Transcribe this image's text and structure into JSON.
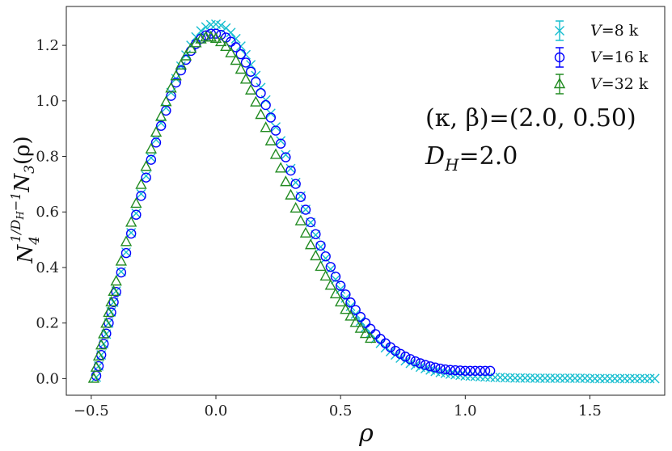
{
  "chart_data": {
    "type": "scatter",
    "title": "",
    "xlabel": "ρ",
    "ylabel": "N4^(1/DH−1) N3(ρ)",
    "ylabel_parts": {
      "base1": "N",
      "sub1": "4",
      "sup1": "1/D",
      "supsub": "H",
      "supend": "−1",
      "base2": "N",
      "sub2": "3",
      "arg": "(ρ)"
    },
    "xlim": [
      -0.6,
      1.8
    ],
    "ylim": [
      -0.06,
      1.34
    ],
    "xticks": [
      -0.5,
      0.0,
      0.5,
      1.0,
      1.5
    ],
    "xtick_labels": [
      "−0.5",
      "0.0",
      "0.5",
      "1.0",
      "1.5"
    ],
    "yticks": [
      0.0,
      0.2,
      0.4,
      0.6,
      0.8,
      1.0,
      1.2
    ],
    "ytick_labels": [
      "0.0",
      "0.2",
      "0.4",
      "0.6",
      "0.8",
      "1.0",
      "1.2"
    ],
    "grid": false,
    "legend_position": "top-right",
    "annotations": [
      {
        "text": "(κ, β)=(2.0, 0.50)"
      },
      {
        "text": "D",
        "sub": "H",
        "rest": "=2.0"
      }
    ],
    "series": [
      {
        "name": "V=8 k",
        "legend_var": "V",
        "legend_rest": "=8 k",
        "marker": "x",
        "color": "#17becf",
        "x": [
          -0.48,
          -0.47,
          -0.46,
          -0.45,
          -0.44,
          -0.43,
          -0.42,
          -0.41,
          -0.4,
          -0.38,
          -0.36,
          -0.34,
          -0.32,
          -0.3,
          -0.28,
          -0.26,
          -0.24,
          -0.22,
          -0.2,
          -0.18,
          -0.16,
          -0.14,
          -0.12,
          -0.1,
          -0.08,
          -0.06,
          -0.04,
          -0.02,
          0.0,
          0.02,
          0.04,
          0.06,
          0.08,
          0.1,
          0.12,
          0.14,
          0.16,
          0.18,
          0.2,
          0.22,
          0.24,
          0.26,
          0.28,
          0.3,
          0.32,
          0.34,
          0.36,
          0.38,
          0.4,
          0.42,
          0.44,
          0.46,
          0.48,
          0.5,
          0.52,
          0.54,
          0.56,
          0.58,
          0.6,
          0.62,
          0.64,
          0.66,
          0.68,
          0.7,
          0.72,
          0.74,
          0.76,
          0.78,
          0.8,
          0.82,
          0.84,
          0.86,
          0.88,
          0.9,
          0.92,
          0.94,
          0.96,
          0.98,
          1.0,
          1.02,
          1.04,
          1.06,
          1.08,
          1.1,
          1.12,
          1.14,
          1.16,
          1.18,
          1.2,
          1.22,
          1.24,
          1.26,
          1.28,
          1.3,
          1.32,
          1.34,
          1.36,
          1.38,
          1.4,
          1.42,
          1.44,
          1.46,
          1.48,
          1.5,
          1.52,
          1.54,
          1.56,
          1.58,
          1.6,
          1.62,
          1.64,
          1.66,
          1.68,
          1.7,
          1.72,
          1.74,
          1.76
        ],
        "y": [
          0.005,
          0.045,
          0.085,
          0.125,
          0.16,
          0.2,
          0.24,
          0.275,
          0.315,
          0.385,
          0.455,
          0.525,
          0.595,
          0.665,
          0.73,
          0.795,
          0.86,
          0.92,
          0.975,
          1.03,
          1.08,
          1.125,
          1.165,
          1.2,
          1.23,
          1.252,
          1.266,
          1.274,
          1.276,
          1.272,
          1.262,
          1.246,
          1.224,
          1.197,
          1.166,
          1.13,
          1.091,
          1.048,
          1.003,
          0.955,
          0.906,
          0.856,
          0.806,
          0.756,
          0.706,
          0.657,
          0.609,
          0.562,
          0.517,
          0.474,
          0.433,
          0.394,
          0.357,
          0.322,
          0.29,
          0.26,
          0.232,
          0.207,
          0.184,
          0.163,
          0.144,
          0.127,
          0.111,
          0.097,
          0.085,
          0.074,
          0.064,
          0.055,
          0.048,
          0.041,
          0.036,
          0.031,
          0.026,
          0.022,
          0.019,
          0.016,
          0.014,
          0.012,
          0.01,
          0.009,
          0.008,
          0.007,
          0.006,
          0.005,
          0.004,
          0.004,
          0.003,
          0.003,
          0.002,
          0.002,
          0.002,
          0.002,
          0.001,
          0.001,
          0.001,
          0.001,
          0.001,
          0.001,
          0.001,
          0.001,
          0.001,
          0.001,
          0.001,
          0.0,
          0.0,
          0.0,
          0.0,
          0.0,
          0.0,
          0.0,
          0.0,
          0.0,
          0.0,
          0.0,
          0.0,
          0.0,
          0.0
        ]
      },
      {
        "name": "V=16 k",
        "legend_var": "V",
        "legend_rest": "=16 k",
        "marker": "o",
        "color": "#0000ff",
        "x": [
          -0.48,
          -0.47,
          -0.46,
          -0.45,
          -0.44,
          -0.43,
          -0.42,
          -0.41,
          -0.4,
          -0.38,
          -0.36,
          -0.34,
          -0.32,
          -0.3,
          -0.28,
          -0.26,
          -0.24,
          -0.22,
          -0.2,
          -0.18,
          -0.16,
          -0.14,
          -0.12,
          -0.1,
          -0.08,
          -0.06,
          -0.04,
          -0.02,
          0.0,
          0.02,
          0.04,
          0.06,
          0.08,
          0.1,
          0.12,
          0.14,
          0.16,
          0.18,
          0.2,
          0.22,
          0.24,
          0.26,
          0.28,
          0.3,
          0.32,
          0.34,
          0.36,
          0.38,
          0.4,
          0.42,
          0.44,
          0.46,
          0.48,
          0.5,
          0.52,
          0.54,
          0.56,
          0.58,
          0.6,
          0.62,
          0.64,
          0.66,
          0.68,
          0.7,
          0.72,
          0.74,
          0.76,
          0.78,
          0.8,
          0.82,
          0.84,
          0.86,
          0.88,
          0.9,
          0.92,
          0.94,
          0.96,
          0.98,
          1.0,
          1.02,
          1.04,
          1.06,
          1.08,
          1.1
        ],
        "y": [
          0.01,
          0.045,
          0.085,
          0.125,
          0.162,
          0.2,
          0.238,
          0.275,
          0.312,
          0.382,
          0.452,
          0.522,
          0.59,
          0.658,
          0.724,
          0.788,
          0.85,
          0.91,
          0.965,
          1.018,
          1.066,
          1.11,
          1.148,
          1.18,
          1.205,
          1.224,
          1.236,
          1.242,
          1.242,
          1.238,
          1.228,
          1.213,
          1.193,
          1.168,
          1.138,
          1.105,
          1.068,
          1.028,
          0.985,
          0.94,
          0.893,
          0.846,
          0.797,
          0.749,
          0.701,
          0.654,
          0.608,
          0.563,
          0.52,
          0.479,
          0.44,
          0.402,
          0.367,
          0.334,
          0.303,
          0.274,
          0.247,
          0.222,
          0.2,
          0.179,
          0.16,
          0.143,
          0.127,
          0.113,
          0.1,
          0.089,
          0.079,
          0.07,
          0.062,
          0.055,
          0.049,
          0.044,
          0.04,
          0.036,
          0.033,
          0.031,
          0.03,
          0.029,
          0.028,
          0.028,
          0.028,
          0.028,
          0.028,
          0.028
        ]
      },
      {
        "name": "V=32 k",
        "legend_var": "V",
        "legend_rest": "=32 k",
        "marker": "^",
        "color": "#228b22",
        "x": [
          -0.49,
          -0.48,
          -0.47,
          -0.46,
          -0.45,
          -0.44,
          -0.43,
          -0.42,
          -0.41,
          -0.4,
          -0.38,
          -0.36,
          -0.34,
          -0.32,
          -0.3,
          -0.28,
          -0.26,
          -0.24,
          -0.22,
          -0.2,
          -0.18,
          -0.16,
          -0.14,
          -0.12,
          -0.1,
          -0.08,
          -0.06,
          -0.04,
          -0.02,
          0.0,
          0.02,
          0.04,
          0.06,
          0.08,
          0.1,
          0.12,
          0.14,
          0.16,
          0.18,
          0.2,
          0.22,
          0.24,
          0.26,
          0.28,
          0.3,
          0.32,
          0.34,
          0.36,
          0.38,
          0.4,
          0.42,
          0.44,
          0.46,
          0.48,
          0.5,
          0.52,
          0.54,
          0.56,
          0.58,
          0.6,
          0.62
        ],
        "y": [
          0.0,
          0.04,
          0.08,
          0.12,
          0.16,
          0.198,
          0.237,
          0.275,
          0.313,
          0.35,
          0.422,
          0.492,
          0.562,
          0.63,
          0.698,
          0.763,
          0.826,
          0.886,
          0.943,
          0.996,
          1.045,
          1.089,
          1.128,
          1.161,
          1.188,
          1.208,
          1.222,
          1.229,
          1.229,
          1.224,
          1.212,
          1.195,
          1.172,
          1.145,
          1.113,
          1.077,
          1.038,
          0.995,
          0.95,
          0.903,
          0.855,
          0.806,
          0.757,
          0.708,
          0.66,
          0.613,
          0.567,
          0.523,
          0.481,
          0.441,
          0.403,
          0.368,
          0.335,
          0.304,
          0.275,
          0.248,
          0.224,
          0.201,
          0.18,
          0.161,
          0.144
        ]
      }
    ]
  }
}
